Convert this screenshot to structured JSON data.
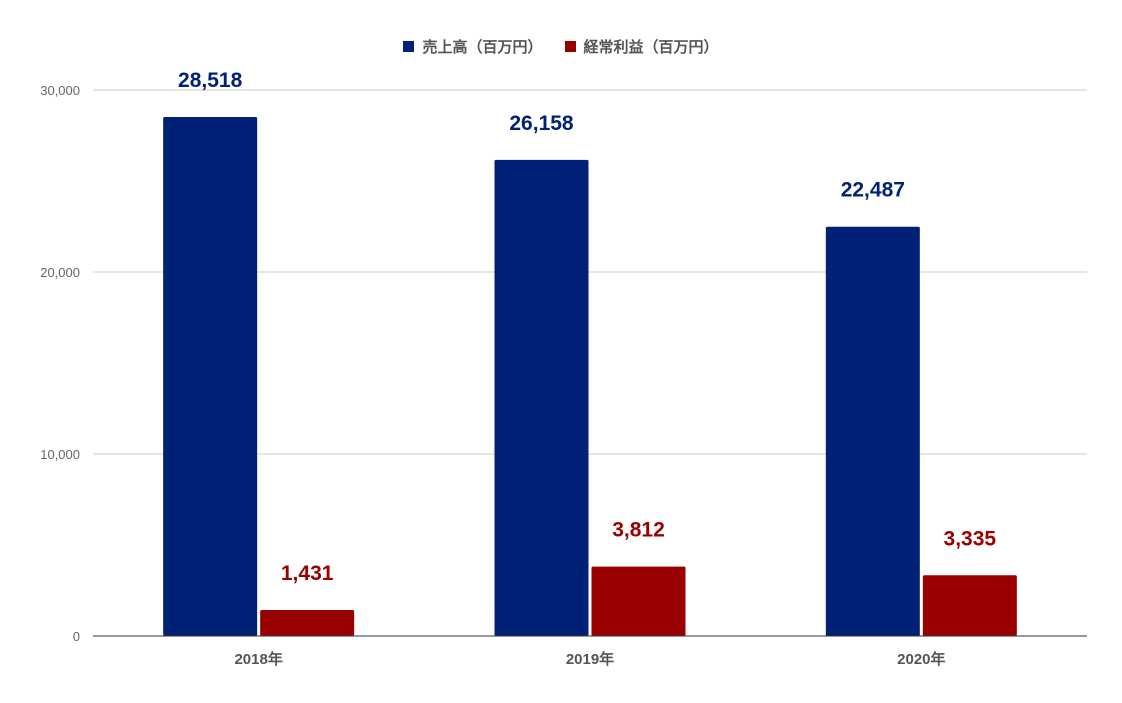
{
  "chart_data": {
    "type": "bar",
    "categories": [
      "2018年",
      "2019年",
      "2020年"
    ],
    "series": [
      {
        "name": "売上高（百万円）",
        "values": [
          28518,
          26158,
          22487
        ],
        "labels": [
          "28,518",
          "26,158",
          "22,487"
        ],
        "color": "#002175"
      },
      {
        "name": "経常利益（百万円）",
        "values": [
          1431,
          3812,
          3335
        ],
        "labels": [
          "1,431",
          "3,812",
          "3,335"
        ],
        "color": "#990000"
      }
    ],
    "ylim": [
      0,
      30000
    ],
    "yticks": [
      0,
      10000,
      20000,
      30000
    ],
    "ytick_labels": [
      "0",
      "10,000",
      "20,000",
      "30,000"
    ],
    "grid": true,
    "legend": "top-center",
    "gridline_color": "#cccccc",
    "axis_color": "#333333"
  }
}
